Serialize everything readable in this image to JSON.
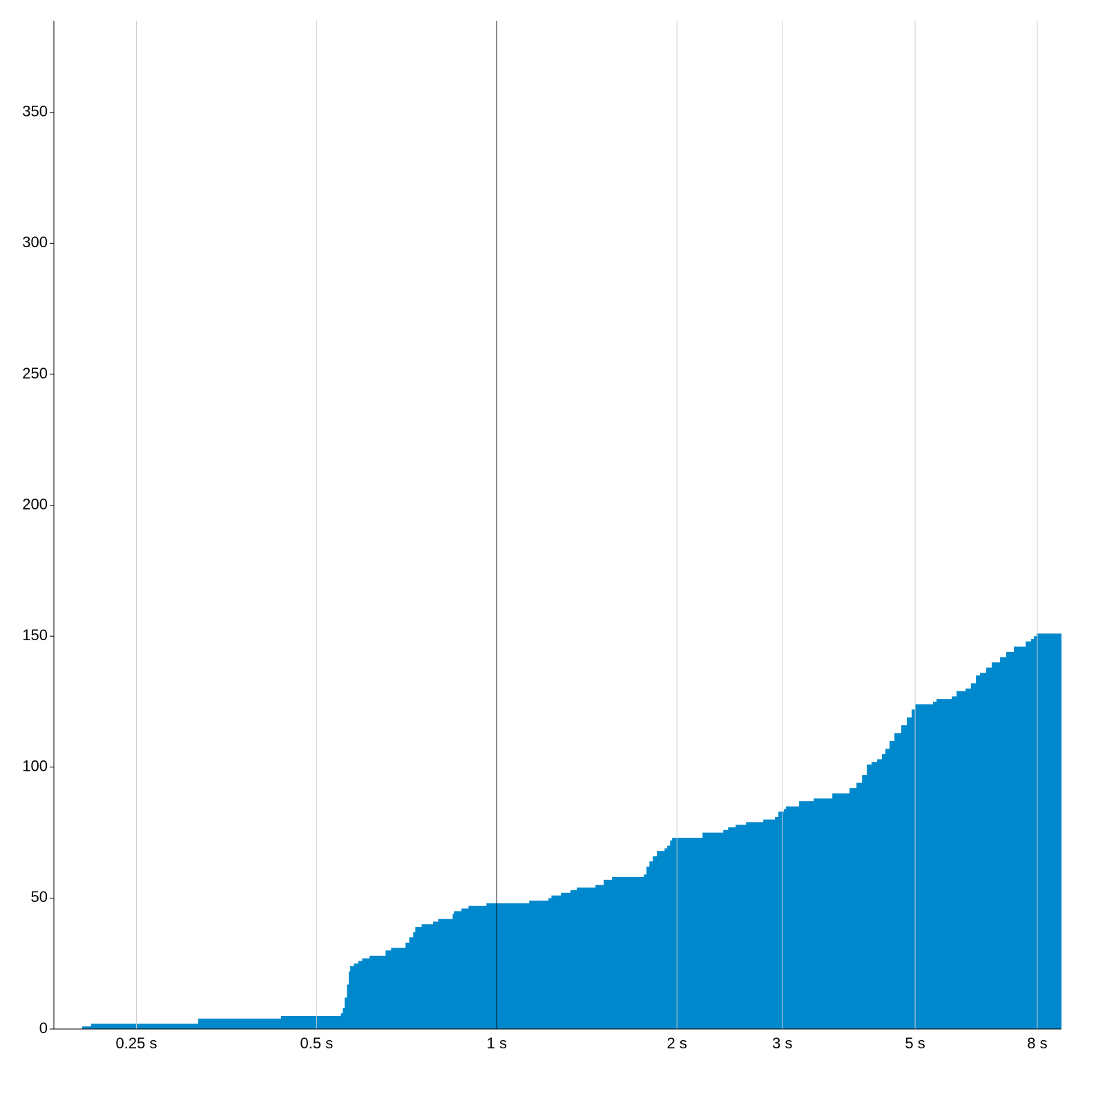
{
  "chart_data": {
    "type": "step-area",
    "color": "#0088cc",
    "xscale": "log",
    "grid": true,
    "reference_line_x": 1,
    "xlim": [
      0.182,
      8.78
    ],
    "ylim": [
      0,
      385
    ],
    "xticks": [
      {
        "value": 0.25,
        "label": "0.25 s"
      },
      {
        "value": 0.5,
        "label": "0.5 s"
      },
      {
        "value": 1,
        "label": "1 s"
      },
      {
        "value": 2,
        "label": "2 s"
      },
      {
        "value": 3,
        "label": "3 s"
      },
      {
        "value": 5,
        "label": "5 s"
      },
      {
        "value": 8,
        "label": "8 s"
      }
    ],
    "yticks": [
      0,
      50,
      100,
      150,
      200,
      250,
      300,
      350
    ],
    "x": [
      0.203,
      0.21,
      0.317,
      0.436,
      0.549,
      0.553,
      0.557,
      0.562,
      0.566,
      0.569,
      0.577,
      0.587,
      0.596,
      0.613,
      0.652,
      0.666,
      0.704,
      0.714,
      0.725,
      0.731,
      0.749,
      0.783,
      0.798,
      0.844,
      0.848,
      0.873,
      0.897,
      0.961,
      1.133,
      1.22,
      1.234,
      1.28,
      1.328,
      1.361,
      1.462,
      1.509,
      1.558,
      1.761,
      1.779,
      1.799,
      1.823,
      1.852,
      1.907,
      1.927,
      1.948,
      1.963,
      2.207,
      2.39,
      2.435,
      2.507,
      2.609,
      2.788,
      2.916,
      2.955,
      3.018,
      3.042,
      3.2,
      3.384,
      3.636,
      3.885,
      3.99,
      4.076,
      4.152,
      4.229,
      4.32,
      4.401,
      4.46,
      4.531,
      4.617,
      4.741,
      4.843,
      4.934,
      5.0,
      5.356,
      5.429,
      5.755,
      5.864,
      6.07,
      6.2,
      6.317,
      6.417,
      6.572,
      6.713,
      6.93,
      7.099,
      7.31,
      7.648,
      7.813,
      7.896,
      7.978
    ],
    "values": [
      1,
      2,
      4,
      5,
      6,
      8,
      12,
      17,
      22,
      24,
      25,
      26,
      27,
      28,
      30,
      31,
      33,
      35,
      37,
      39,
      40,
      41,
      42,
      44,
      45,
      46,
      47,
      48,
      49,
      50,
      51,
      52,
      53,
      54,
      55,
      57,
      58,
      59,
      62,
      64,
      66,
      68,
      69,
      70,
      72,
      73,
      75,
      76,
      77,
      78,
      79,
      80,
      81,
      83,
      84,
      85,
      87,
      88,
      90,
      92,
      94,
      97,
      101,
      102,
      103,
      105,
      107,
      110,
      113,
      116,
      119,
      122,
      124,
      125,
      126,
      127,
      129,
      130,
      132,
      135,
      136,
      138,
      140,
      142,
      144,
      146,
      148,
      149,
      150,
      151
    ]
  }
}
